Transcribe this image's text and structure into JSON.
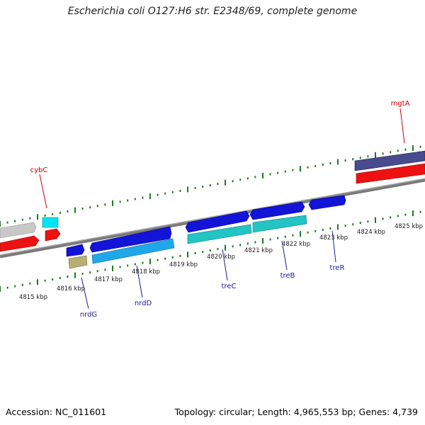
{
  "title": "Escherichia coli O127:H6 str. E2348/69, complete genome",
  "footer": {
    "accession": "Accession: NC_011601",
    "summary": "Topology: circular; Length: 4,965,553 bp; Genes: 4,739"
  },
  "colors": {
    "backbone": "#8a8a8a",
    "forward_cds": "#1414d8",
    "reverse_cds": "#22c4c4",
    "light_blue_cds": "#1fa8e8",
    "red_feature": "#ee1111",
    "grey_feature": "#c8c8c8",
    "navy_feature": "#4a4a8e",
    "olive_feature": "#b8b070",
    "cyan_feature": "#00e4f0",
    "tick_green": "#1a7a1a",
    "label_red": "#cc0000",
    "label_blue": "#1a1aa0"
  },
  "kbp_labels": [
    "4815 kbp",
    "4816 kbp",
    "4817 kbp",
    "4818 kbp",
    "4819 kbp",
    "4820 kbp",
    "4821 kbp",
    "4822 kbp",
    "4823 kbp",
    "4824 kbp",
    "4825 kbp"
  ],
  "gene_labels": {
    "cybC": "cybC",
    "mgtA": "mgtA",
    "nrdG": "nrdG",
    "nrdD": "nrdD",
    "treC": "treC",
    "treB": "treB",
    "treR": "treR"
  }
}
